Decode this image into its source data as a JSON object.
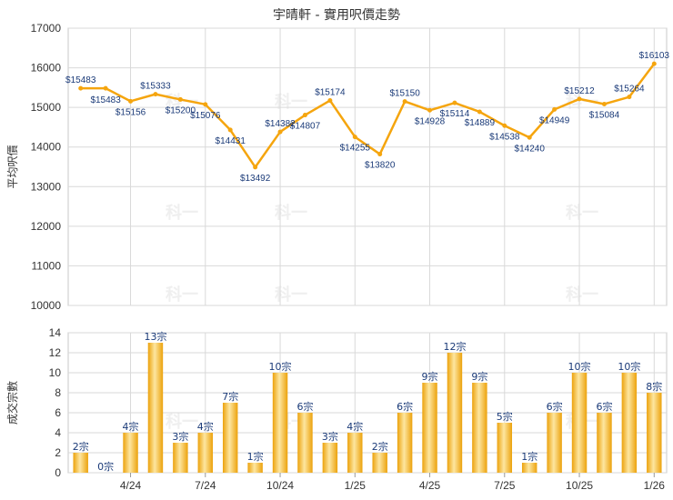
{
  "title": "宇晴軒 - 實用呎價走勢",
  "colors": {
    "line": "#f5a50e",
    "point": "#f5a50e",
    "bar_light": "#fde6a0",
    "bar_dark": "#eca20c",
    "grid": "#d9d9d9",
    "label": "#1a3a78"
  },
  "watermark": "科一",
  "chart_data": [
    {
      "type": "line",
      "ylabel": "平均呎價",
      "ylim": [
        10000,
        17000
      ],
      "yticks": [
        10000,
        11000,
        12000,
        13000,
        14000,
        15000,
        16000,
        17000
      ],
      "grid": true,
      "series": [
        {
          "values": [
            15483,
            15483,
            15156,
            15333,
            15200,
            15076,
            14431,
            13492,
            14382,
            14807,
            15174,
            14255,
            13820,
            15150,
            14928,
            15114,
            14889,
            14538,
            14240,
            14949,
            15212,
            15084,
            15264,
            16103
          ],
          "labels": [
            "$15483",
            "$15483",
            "$15156",
            "$15333",
            "$15200",
            "$15076",
            "$14431",
            "$13492",
            "$14382",
            "$14807",
            "$15174",
            "$14255",
            "$13820",
            "$15150",
            "$14928",
            "$15114",
            "$14889",
            "$14538",
            "$14240",
            "$14949",
            "$15212",
            "$15084",
            "$15264",
            "$16103"
          ]
        }
      ]
    },
    {
      "type": "bar",
      "ylabel": "成交宗數",
      "ylim": [
        0,
        14
      ],
      "yticks": [
        0,
        2,
        4,
        6,
        8,
        10,
        12,
        14
      ],
      "grid": true,
      "x_ticks": [
        "4/24",
        "7/24",
        "10/24",
        "1/25",
        "4/25",
        "7/25",
        "10/25",
        "1/26"
      ],
      "series": [
        {
          "values": [
            2,
            0,
            4,
            13,
            3,
            4,
            7,
            1,
            10,
            6,
            3,
            4,
            2,
            6,
            9,
            12,
            9,
            5,
            1,
            6,
            10,
            6,
            10,
            8
          ],
          "labels": [
            "2宗",
            "0宗",
            "4宗",
            "13宗",
            "3宗",
            "4宗",
            "7宗",
            "1宗",
            "10宗",
            "6宗",
            "3宗",
            "4宗",
            "2宗",
            "6宗",
            "9宗",
            "12宗",
            "9宗",
            "5宗",
            "1宗",
            "6宗",
            "10宗",
            "6宗",
            "10宗",
            "8宗"
          ]
        }
      ]
    }
  ]
}
